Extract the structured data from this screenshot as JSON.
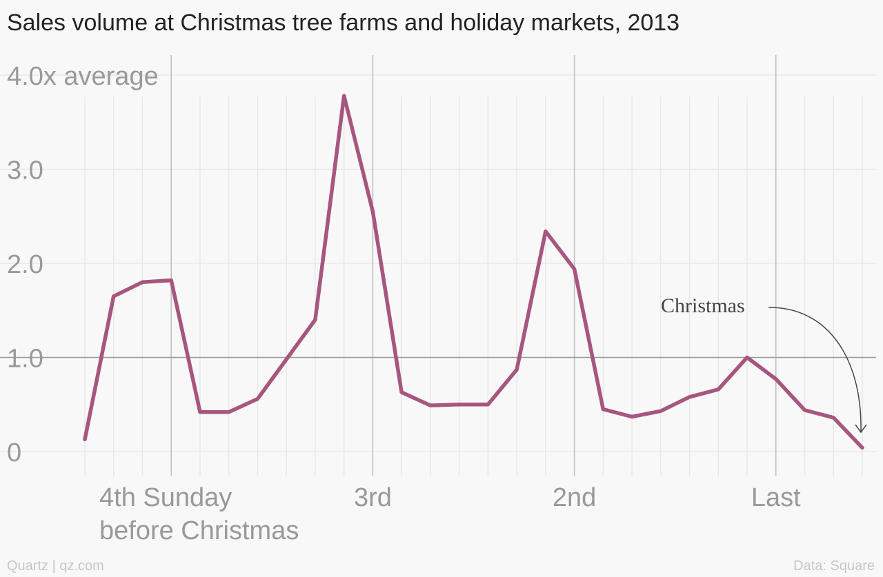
{
  "title": "Sales volume at Christmas tree farms and holiday markets, 2013",
  "footer": {
    "credit": "Quartz | qz.com",
    "source": "Data: Square"
  },
  "colors": {
    "line": "#a6567f",
    "axis_text": "#999999",
    "grid_major": "#bdbdbd",
    "grid_minor": "#e8e8e8",
    "baseline": "#999999",
    "annotation": "#444444"
  },
  "chart_data": {
    "type": "line",
    "title": "Sales volume at Christmas tree farms and holiday markets, 2013",
    "x_unit": "days before Christmas",
    "x": [
      27,
      26,
      25,
      24,
      23,
      22,
      21,
      20,
      19,
      18,
      17,
      16,
      15,
      14,
      13,
      12,
      11,
      10,
      9,
      8,
      7,
      6,
      5,
      4,
      3,
      2,
      1,
      0
    ],
    "series": [
      {
        "values": [
          0.13,
          1.65,
          1.8,
          1.82,
          0.42,
          0.42,
          0.56,
          0.98,
          1.4,
          3.78,
          2.55,
          0.63,
          0.49,
          0.5,
          0.5,
          0.87,
          2.34,
          1.94,
          0.45,
          0.37,
          0.43,
          0.58,
          0.66,
          1.0,
          0.77,
          0.44,
          0.36,
          0.04
        ]
      }
    ],
    "y_ticks": [
      {
        "value": 4.0,
        "label": "4.0x average"
      },
      {
        "value": 3.0,
        "label": "3.0"
      },
      {
        "value": 2.0,
        "label": "2.0"
      },
      {
        "value": 1.0,
        "label": "1.0"
      },
      {
        "value": 0,
        "label": "0"
      }
    ],
    "ylim": [
      0,
      4.0
    ],
    "x_major_ticks": [
      {
        "x": 24,
        "label": [
          "4th Sunday",
          "before Christmas"
        ]
      },
      {
        "x": 17,
        "label": [
          "3rd"
        ]
      },
      {
        "x": 10,
        "label": [
          "2nd"
        ]
      },
      {
        "x": 3,
        "label": [
          "Last"
        ]
      }
    ],
    "x_minor_ticks": [
      27,
      26,
      25,
      23,
      22,
      21,
      20,
      19,
      18,
      16,
      15,
      14,
      13,
      12,
      11,
      9,
      8,
      7,
      6,
      5,
      4,
      2,
      1,
      0
    ],
    "reference_line": {
      "y": 1.0
    },
    "annotation": {
      "text": "Christmas",
      "target_x": 0
    },
    "grid": true
  }
}
